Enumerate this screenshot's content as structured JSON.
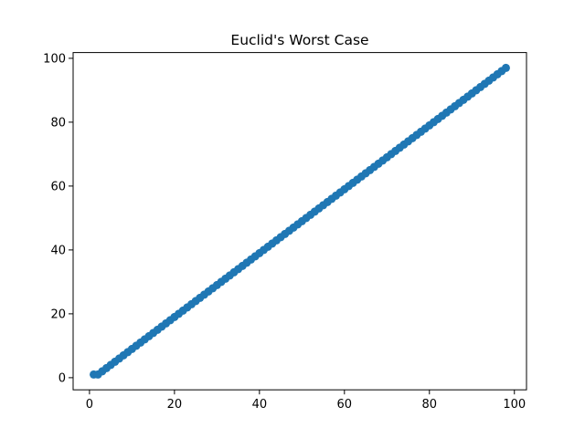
{
  "chart_data": {
    "type": "scatter",
    "title": "Euclid's Worst Case",
    "color": "#1f77b4",
    "x": [
      1,
      2,
      3,
      4,
      5,
      6,
      7,
      8,
      9,
      10,
      11,
      12,
      13,
      14,
      15,
      16,
      17,
      18,
      19,
      20,
      21,
      22,
      23,
      24,
      25,
      26,
      27,
      28,
      29,
      30,
      31,
      32,
      33,
      34,
      35,
      36,
      37,
      38,
      39,
      40,
      41,
      42,
      43,
      44,
      45,
      46,
      47,
      48,
      49,
      50,
      51,
      52,
      53,
      54,
      55,
      56,
      57,
      58,
      59,
      60,
      61,
      62,
      63,
      64,
      65,
      66,
      67,
      68,
      69,
      70,
      71,
      72,
      73,
      74,
      75,
      76,
      77,
      78,
      79,
      80,
      81,
      82,
      83,
      84,
      85,
      86,
      87,
      88,
      89,
      90,
      91,
      92,
      93,
      94,
      95,
      96,
      97,
      98
    ],
    "values": [
      1,
      1,
      2,
      3,
      4,
      5,
      6,
      7,
      8,
      9,
      10,
      11,
      12,
      13,
      14,
      15,
      16,
      17,
      18,
      19,
      20,
      21,
      22,
      23,
      24,
      25,
      26,
      27,
      28,
      29,
      30,
      31,
      32,
      33,
      34,
      35,
      36,
      37,
      38,
      39,
      40,
      41,
      42,
      43,
      44,
      45,
      46,
      47,
      48,
      49,
      50,
      51,
      52,
      53,
      54,
      55,
      56,
      57,
      58,
      59,
      60,
      61,
      62,
      63,
      64,
      65,
      66,
      67,
      68,
      69,
      70,
      71,
      72,
      73,
      74,
      75,
      76,
      77,
      78,
      79,
      80,
      81,
      82,
      83,
      84,
      85,
      86,
      87,
      88,
      89,
      90,
      91,
      92,
      93,
      94,
      95,
      96,
      97
    ],
    "xlim": [
      -3.85,
      102.85
    ],
    "ylim": [
      -3.8,
      101.8
    ],
    "xticks": [
      0,
      20,
      40,
      60,
      80,
      100
    ],
    "yticks": [
      0,
      20,
      40,
      60,
      80,
      100
    ]
  }
}
